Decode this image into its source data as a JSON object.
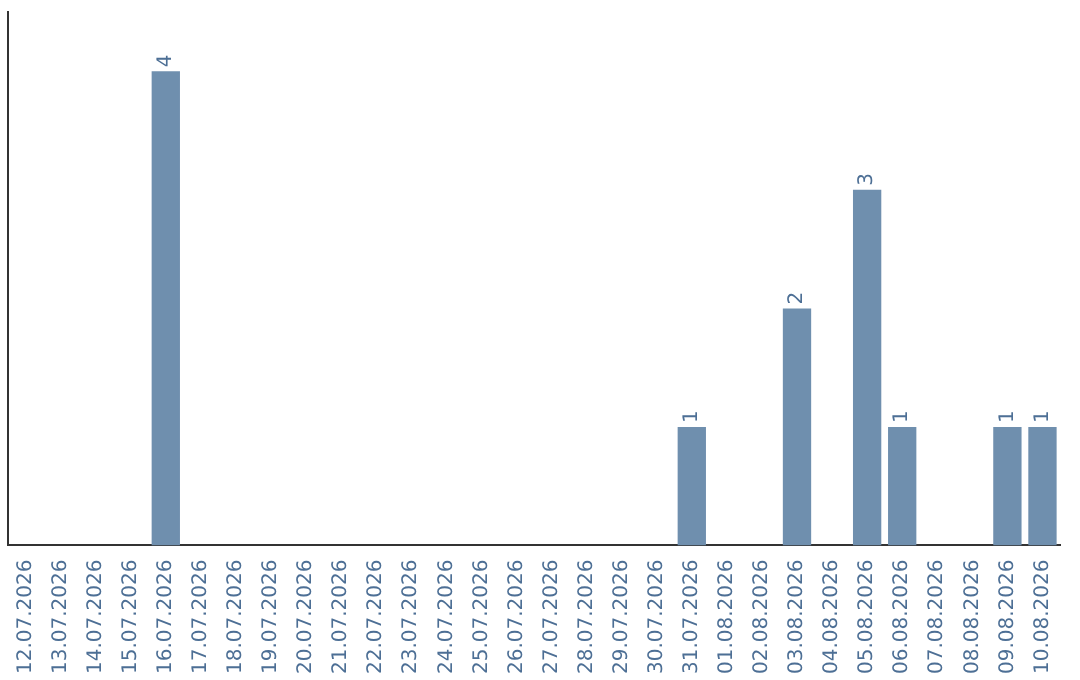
{
  "chart_data": {
    "type": "bar",
    "categories": [
      "12.07.2026",
      "13.07.2026",
      "14.07.2026",
      "15.07.2026",
      "16.07.2026",
      "17.07.2026",
      "18.07.2026",
      "19.07.2026",
      "20.07.2026",
      "21.07.2026",
      "22.07.2026",
      "23.07.2026",
      "24.07.2026",
      "25.07.2026",
      "26.07.2026",
      "27.07.2026",
      "28.07.2026",
      "29.07.2026",
      "30.07.2026",
      "31.07.2026",
      "01.08.2026",
      "02.08.2026",
      "03.08.2026",
      "04.08.2026",
      "05.08.2026",
      "06.08.2026",
      "07.08.2026",
      "08.08.2026",
      "09.08.2026",
      "10.08.2026"
    ],
    "values": [
      0,
      0,
      0,
      0,
      4,
      0,
      0,
      0,
      0,
      0,
      0,
      0,
      0,
      0,
      0,
      0,
      0,
      0,
      0,
      1,
      0,
      0,
      2,
      0,
      3,
      1,
      0,
      0,
      1,
      1
    ],
    "value_labels": [
      null,
      null,
      null,
      null,
      "4",
      null,
      null,
      null,
      null,
      null,
      null,
      null,
      null,
      null,
      null,
      null,
      null,
      null,
      null,
      "1",
      null,
      null,
      "2",
      null,
      "3",
      "1",
      null,
      null,
      "1",
      "1"
    ],
    "color": "#6f8fae",
    "tick_labels": "x",
    "grid": false,
    "legend": false
  }
}
